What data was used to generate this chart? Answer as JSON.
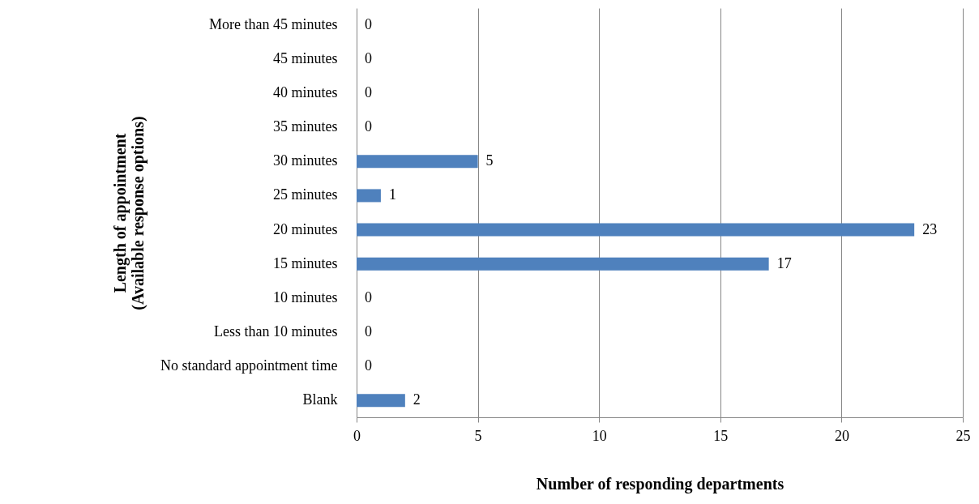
{
  "chart_data": {
    "type": "bar",
    "orientation": "horizontal",
    "xlabel": "Number of responding departments",
    "ylabel": "Length of appointment\n(Available response options)",
    "categories": [
      "More than 45 minutes",
      "45 minutes",
      "40 minutes",
      "35 minutes",
      "30 minutes",
      "25 minutes",
      "20 minutes",
      "15 minutes",
      "10 minutes",
      "Less than 10 minutes",
      "No standard appointment time",
      "Blank"
    ],
    "values": [
      0,
      0,
      0,
      0,
      5,
      1,
      23,
      17,
      0,
      0,
      0,
      2
    ],
    "color": "#4f81bd",
    "xlim": [
      0,
      25
    ],
    "xticks": [
      0,
      5,
      10,
      15,
      20,
      25
    ],
    "grid": "x",
    "data_labels": true
  }
}
